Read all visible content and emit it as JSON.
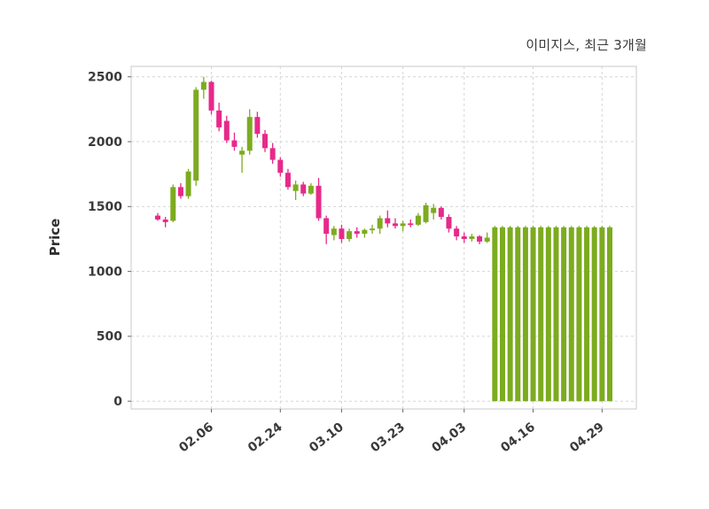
{
  "header": {
    "title": "이미지스, 최근 3개월"
  },
  "chart_data": {
    "type": "candlestick",
    "title": "이미지스, 최근 3개월",
    "ylabel": "Price",
    "yticks": [
      0,
      500,
      1000,
      1500,
      2000,
      2500
    ],
    "ylim": [
      -60,
      2580
    ],
    "xticks": [
      {
        "index": 7,
        "label": "02.06"
      },
      {
        "index": 16,
        "label": "02.24"
      },
      {
        "index": 24,
        "label": "03.10"
      },
      {
        "index": 32,
        "label": "03.23"
      },
      {
        "index": 40,
        "label": "04.03"
      },
      {
        "index": 49,
        "label": "04.16"
      },
      {
        "index": 58,
        "label": "04.29"
      }
    ],
    "grid": "dashed",
    "legend": "none",
    "up_color": "#7cab20",
    "down_color": "#e7298a",
    "grid_color": "#d6d6d6",
    "axis_color": "#c9c9c9",
    "tick_color": "#6a6a6a",
    "text_color": "#3a3a3a",
    "candles": [
      [
        1430,
        1450,
        1390,
        1400
      ],
      [
        1400,
        1420,
        1340,
        1380
      ],
      [
        1390,
        1670,
        1380,
        1650
      ],
      [
        1650,
        1680,
        1560,
        1580
      ],
      [
        1580,
        1790,
        1560,
        1770
      ],
      [
        1700,
        2420,
        1660,
        2400
      ],
      [
        2400,
        2500,
        2330,
        2460
      ],
      [
        2460,
        2470,
        2210,
        2240
      ],
      [
        2240,
        2300,
        2080,
        2110
      ],
      [
        2160,
        2200,
        1990,
        2010
      ],
      [
        2010,
        2070,
        1930,
        1960
      ],
      [
        1900,
        1960,
        1760,
        1930
      ],
      [
        1930,
        2250,
        1900,
        2190
      ],
      [
        2190,
        2230,
        2030,
        2060
      ],
      [
        2060,
        2090,
        1920,
        1950
      ],
      [
        1950,
        1990,
        1830,
        1860
      ],
      [
        1860,
        1880,
        1730,
        1760
      ],
      [
        1760,
        1790,
        1630,
        1650
      ],
      [
        1620,
        1700,
        1550,
        1670
      ],
      [
        1670,
        1690,
        1580,
        1600
      ],
      [
        1600,
        1680,
        1590,
        1660
      ],
      [
        1660,
        1720,
        1390,
        1410
      ],
      [
        1410,
        1430,
        1210,
        1290
      ],
      [
        1280,
        1350,
        1240,
        1330
      ],
      [
        1330,
        1360,
        1220,
        1250
      ],
      [
        1250,
        1330,
        1230,
        1310
      ],
      [
        1310,
        1340,
        1260,
        1290
      ],
      [
        1290,
        1330,
        1260,
        1320
      ],
      [
        1320,
        1360,
        1290,
        1330
      ],
      [
        1330,
        1430,
        1290,
        1410
      ],
      [
        1410,
        1470,
        1340,
        1370
      ],
      [
        1370,
        1410,
        1330,
        1350
      ],
      [
        1350,
        1390,
        1310,
        1370
      ],
      [
        1370,
        1400,
        1340,
        1360
      ],
      [
        1360,
        1450,
        1350,
        1430
      ],
      [
        1380,
        1530,
        1370,
        1510
      ],
      [
        1450,
        1520,
        1400,
        1490
      ],
      [
        1490,
        1500,
        1400,
        1420
      ],
      [
        1420,
        1440,
        1300,
        1330
      ],
      [
        1330,
        1350,
        1240,
        1270
      ],
      [
        1270,
        1300,
        1220,
        1250
      ],
      [
        1250,
        1290,
        1230,
        1270
      ],
      [
        1270,
        1280,
        1210,
        1230
      ],
      [
        1230,
        1300,
        1220,
        1260
      ],
      [
        0,
        1350,
        0,
        1340
      ],
      [
        0,
        1350,
        0,
        1340
      ],
      [
        0,
        1350,
        0,
        1340
      ],
      [
        0,
        1350,
        0,
        1340
      ],
      [
        0,
        1350,
        0,
        1340
      ],
      [
        0,
        1350,
        0,
        1340
      ],
      [
        0,
        1350,
        0,
        1340
      ],
      [
        0,
        1350,
        0,
        1340
      ],
      [
        0,
        1350,
        0,
        1340
      ],
      [
        0,
        1350,
        0,
        1340
      ],
      [
        0,
        1350,
        0,
        1340
      ],
      [
        0,
        1350,
        0,
        1340
      ],
      [
        0,
        1350,
        0,
        1340
      ],
      [
        0,
        1350,
        0,
        1340
      ],
      [
        0,
        1350,
        0,
        1340
      ],
      [
        0,
        1350,
        0,
        1340
      ]
    ]
  }
}
